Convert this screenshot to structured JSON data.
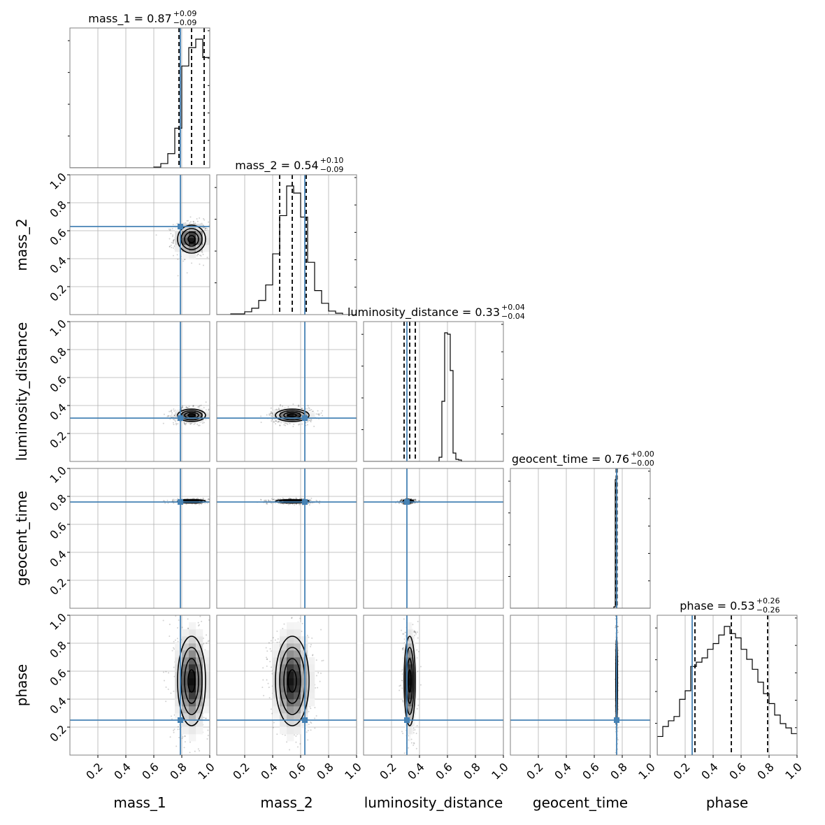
{
  "chart_data": {
    "type": "corner",
    "parameters": [
      "mass_1",
      "mass_2",
      "luminosity_distance",
      "geocent_time",
      "phase"
    ],
    "axis_labels": [
      "mass_1",
      "mass_2",
      "luminosity_distance",
      "geocent_time",
      "phase"
    ],
    "range": [
      0,
      1
    ],
    "tick_values": [
      0.2,
      0.4,
      0.6,
      0.8,
      1.0
    ],
    "tick_labels": [
      "0.2",
      "0.4",
      "0.6",
      "0.8",
      "1.0"
    ],
    "grid": true,
    "truths": [
      0.79,
      0.63,
      0.31,
      0.76,
      0.25
    ],
    "titles": [
      {
        "text": "mass_1 = 0.87",
        "plus": "+0.09",
        "minus": "−0.09"
      },
      {
        "text": "mass_2 = 0.54",
        "plus": "+0.10",
        "minus": "−0.09"
      },
      {
        "text": "luminosity_distance = 0.33",
        "plus": "+0.04",
        "minus": "−0.04"
      },
      {
        "text": "geocent_time = 0.76",
        "plus": "+0.00",
        "minus": "−0.00"
      },
      {
        "text": "phase = 0.53",
        "plus": "+0.26",
        "minus": "−0.26"
      }
    ],
    "quantiles": [
      [
        0.78,
        0.87,
        0.96
      ],
      [
        0.45,
        0.54,
        0.64
      ],
      [
        0.29,
        0.33,
        0.37
      ],
      [
        0.757,
        0.76,
        0.763
      ],
      [
        0.27,
        0.53,
        0.79
      ]
    ],
    "histograms": [
      {
        "bin_width": 0.05,
        "counts": [
          0,
          0,
          0,
          0,
          0,
          0,
          0,
          0,
          0,
          0,
          0,
          0,
          0.5,
          3,
          10,
          28,
          72,
          85,
          91,
          78,
          47
        ]
      },
      {
        "bin_width": 0.05,
        "counts": [
          0,
          0,
          0.5,
          0.5,
          2,
          4.5,
          10,
          21,
          43,
          70,
          91,
          86,
          69,
          37,
          17,
          8,
          2.5,
          1,
          0,
          0
        ]
      },
      {
        "bin_width": 0.02,
        "counts": [
          0,
          0,
          0,
          0,
          0,
          0,
          0,
          0,
          0,
          0,
          0,
          0,
          0,
          0,
          0,
          0,
          0,
          0,
          0,
          0,
          0,
          0,
          0,
          0,
          0,
          0,
          0,
          3,
          43,
          92,
          91,
          65,
          6,
          1.5,
          1,
          0,
          0,
          0,
          0,
          0,
          0,
          0,
          0,
          0,
          0,
          0,
          0,
          0,
          0,
          0
        ]
      },
      {
        "bin_width": 0.01,
        "counts": [
          0,
          0,
          0,
          0,
          0,
          0,
          0,
          0,
          0,
          0,
          0,
          0,
          0,
          0,
          0,
          0,
          0,
          0,
          0,
          0,
          0,
          0,
          0,
          0,
          0,
          0,
          0,
          0,
          0,
          0,
          0,
          0,
          0,
          0,
          0,
          0,
          0,
          0,
          0,
          0,
          0,
          0,
          0,
          0,
          0,
          0,
          0,
          0,
          0,
          0,
          0,
          0,
          0,
          0,
          0,
          0,
          0,
          0,
          0,
          0,
          0,
          0,
          0,
          0,
          0,
          0,
          0,
          0,
          0,
          0,
          0,
          0,
          0,
          0,
          1,
          92,
          0,
          0,
          0,
          0,
          0,
          0,
          0,
          0,
          0,
          0,
          0,
          0,
          0,
          0,
          0,
          0,
          0,
          0,
          0,
          0,
          0,
          0,
          0,
          0
        ]
      },
      {
        "bin_width": 0.04,
        "counts": [
          13,
          20,
          24,
          27,
          39,
          45,
          62,
          65,
          68,
          74,
          78,
          84,
          90,
          85,
          82,
          74,
          67,
          60,
          51,
          43,
          36,
          28,
          22,
          19,
          15
        ]
      }
    ],
    "posterior_2d": [
      {
        "x": 0,
        "y": 1,
        "mean": [
          0.87,
          0.54
        ],
        "std": [
          0.05,
          0.05
        ],
        "sample_color": "#000000"
      },
      {
        "x": 0,
        "y": 2,
        "mean": [
          0.87,
          0.33
        ],
        "std": [
          0.05,
          0.022
        ],
        "sample_color": "#000000"
      },
      {
        "x": 1,
        "y": 2,
        "mean": [
          0.54,
          0.33
        ],
        "std": [
          0.06,
          0.022
        ],
        "sample_color": "#000000"
      },
      {
        "x": 0,
        "y": 3,
        "mean": [
          0.87,
          0.765
        ],
        "std": [
          0.05,
          0.006
        ],
        "sample_color": "#000000"
      },
      {
        "x": 1,
        "y": 3,
        "mean": [
          0.54,
          0.765
        ],
        "std": [
          0.06,
          0.006
        ],
        "sample_color": "#000000"
      },
      {
        "x": 2,
        "y": 3,
        "mean": [
          0.32,
          0.765
        ],
        "std": [
          0.02,
          0.006
        ],
        "sample_color": "#000000"
      },
      {
        "x": 0,
        "y": 4,
        "mean": [
          0.87,
          0.53
        ],
        "std": [
          0.05,
          0.16
        ],
        "sample_color": "#000000"
      },
      {
        "x": 1,
        "y": 4,
        "mean": [
          0.54,
          0.53
        ],
        "std": [
          0.06,
          0.16
        ],
        "sample_color": "#000000"
      },
      {
        "x": 2,
        "y": 4,
        "mean": [
          0.33,
          0.53
        ],
        "std": [
          0.02,
          0.16
        ],
        "sample_color": "#000000"
      },
      {
        "x": 3,
        "y": 4,
        "mean": [
          0.76,
          0.53
        ],
        "std": [
          0.003,
          0.16
        ],
        "sample_color": "#000000"
      }
    ],
    "colors": {
      "truth": "#4682b4",
      "hist": "#000000",
      "grid": "#b0b0b0",
      "axes": "#808080",
      "contour": "#000000"
    }
  }
}
